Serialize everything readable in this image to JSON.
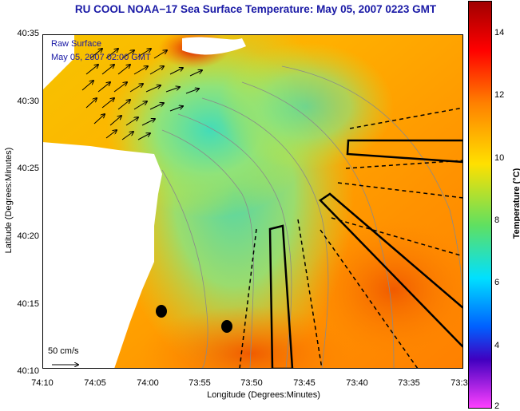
{
  "title": "RU COOL  NOAA−17  Sea Surface Temperature:  May 05, 2007 0223 GMT",
  "legend": {
    "line1": "Raw Surface",
    "line2": "May 05, 2007 02:00 GMT"
  },
  "axes": {
    "xlabel": "Longitude (Degrees:Minutes)",
    "ylabel": "Latitude (Degrees:Minutes)",
    "xticks": [
      "74:10",
      "74:05",
      "74:00",
      "73:55",
      "73:50",
      "73:45",
      "73:40",
      "73:35",
      "73:3"
    ],
    "yticks": [
      "40:35",
      "40:30",
      "40:25",
      "40:20",
      "40:15",
      "40:10"
    ]
  },
  "vector_scale_label": "50 cm/s",
  "colorbar": {
    "label": "Temperature (°C)",
    "ticks": [
      "14",
      "12",
      "10",
      "8",
      "6",
      "4",
      "2"
    ],
    "range": [
      2,
      15
    ]
  },
  "colors": {
    "title": "#1a1aa6",
    "land": "#ffffff",
    "warm_water": "#ff9a00",
    "cool_water": "#7fe07f"
  },
  "markers": [
    "station-dot-1",
    "station-dot-2"
  ]
}
